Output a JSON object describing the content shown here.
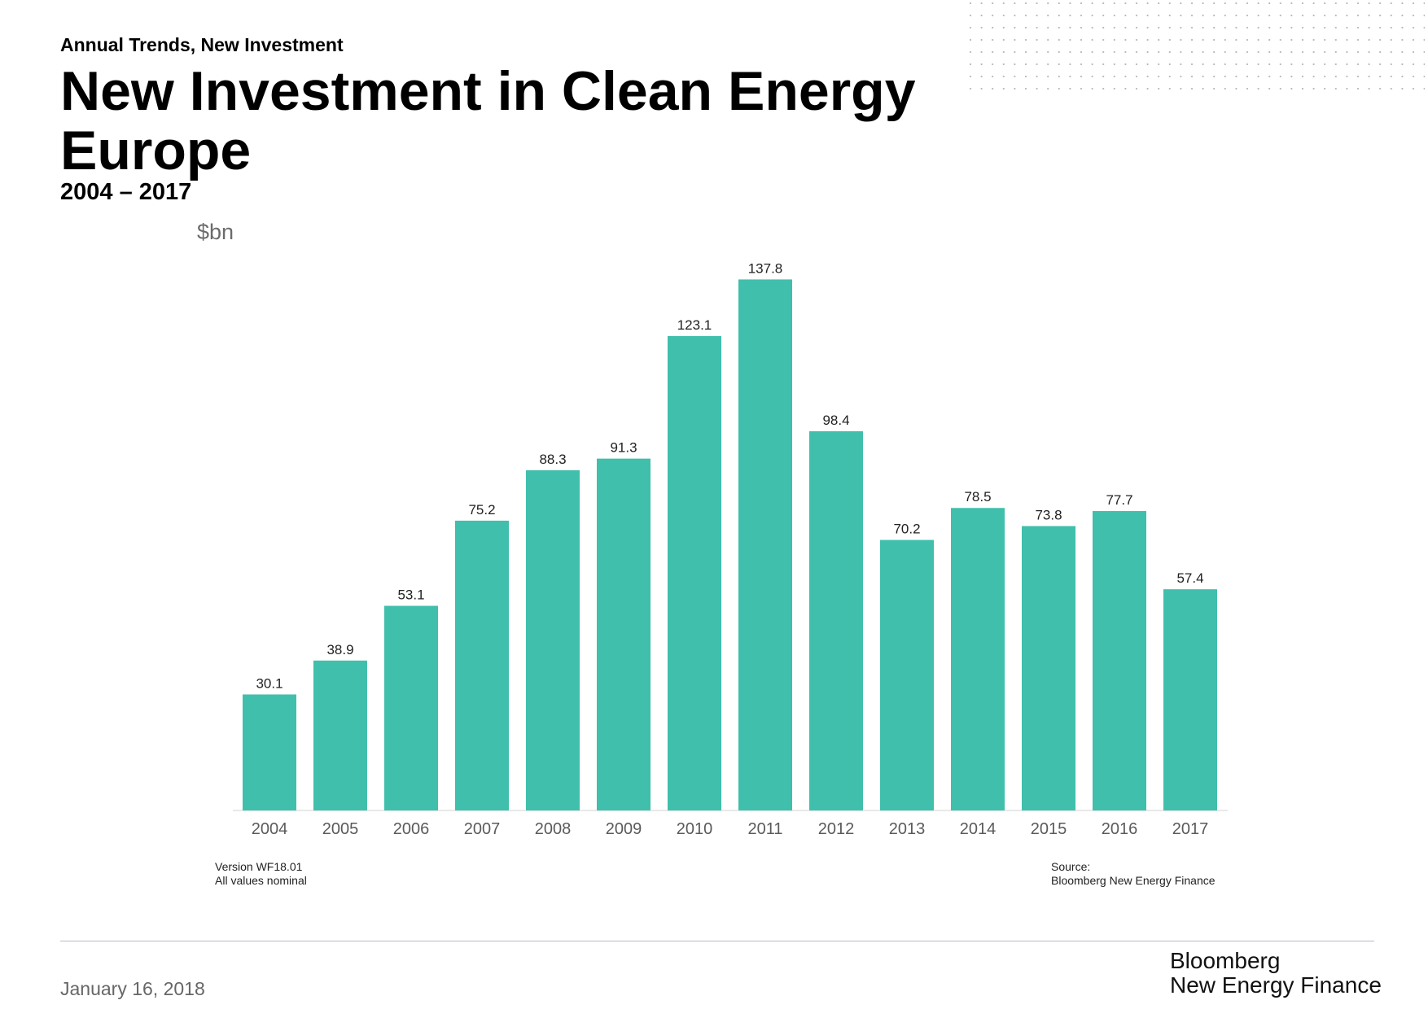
{
  "header": {
    "kicker": "Annual Trends, New Investment",
    "title_line1": "New Investment in Clean Energy",
    "title_line2": "Europe",
    "subtitle": "2004 – 2017"
  },
  "chart_data": {
    "type": "bar",
    "ylabel": "$bn",
    "categories": [
      "2004",
      "2005",
      "2006",
      "2007",
      "2008",
      "2009",
      "2010",
      "2011",
      "2012",
      "2013",
      "2014",
      "2015",
      "2016",
      "2017"
    ],
    "values": [
      30.1,
      38.9,
      53.1,
      75.2,
      88.3,
      91.3,
      123.1,
      137.8,
      98.4,
      70.2,
      78.5,
      73.8,
      77.7,
      57.4
    ],
    "data_labels": [
      "30.1",
      "38.9",
      "53.1",
      "75.2",
      "88.3",
      "91.3",
      "123.1",
      "137.8",
      "98.4",
      "70.2",
      "78.5",
      "73.8",
      "77.7",
      "57.4"
    ],
    "ylim": [
      0,
      140
    ],
    "grid": false,
    "legend": "none",
    "bar_color": "#40bfac"
  },
  "notes": {
    "version": "Version WF18.01",
    "values_note": "All values  nominal",
    "source_label": "Source:",
    "source_value": "Bloomberg  New Energy Finance"
  },
  "footer": {
    "date": "January 16, 2018",
    "brand_line1": "Bloomberg",
    "brand_line2": "New Energy Finance"
  },
  "colors": {
    "bar": "#40bfac",
    "axis_text": "#5a5a5a",
    "rule": "#b9b9c8"
  }
}
